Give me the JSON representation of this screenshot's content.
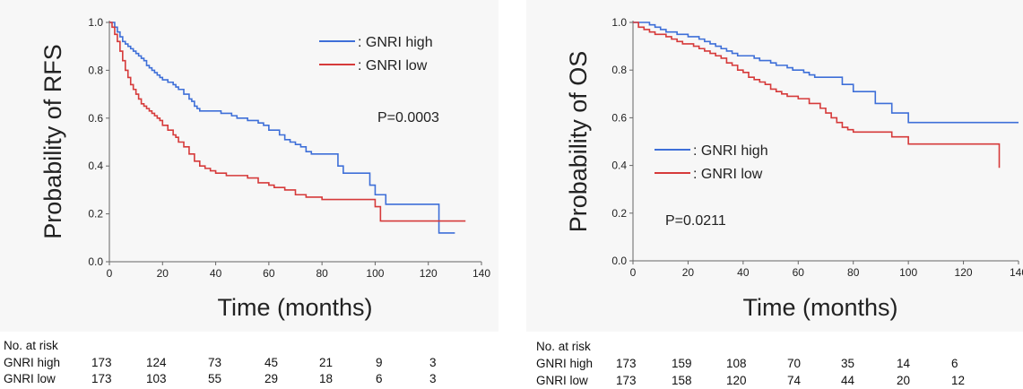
{
  "chart_data": [
    {
      "type": "line",
      "ylabel": "Probability of RFS",
      "xlabel": "Time (months)",
      "xlim": [
        0,
        140
      ],
      "ylim": [
        0,
        1.0
      ],
      "xticks": [
        "0",
        "20",
        "40",
        "60",
        "80",
        "100",
        "120",
        "140"
      ],
      "yticks": [
        "0.0",
        "0.2",
        "0.4",
        "0.6",
        "0.8",
        "1.0"
      ],
      "legend_position": "top-right",
      "annotation": "P=0.0003",
      "series": [
        {
          "name": ": GNRI high",
          "color": "#3e6fd8",
          "x": [
            0,
            2,
            3,
            4,
            5,
            6,
            7,
            8,
            9,
            10,
            11,
            12,
            13,
            14,
            15,
            16,
            17,
            18,
            19,
            20,
            22,
            24,
            25,
            26,
            28,
            30,
            31,
            32,
            33,
            34,
            36,
            40,
            42,
            44,
            46,
            48,
            50,
            52,
            54,
            56,
            58,
            60,
            62,
            64,
            66,
            68,
            70,
            72,
            74,
            76,
            78,
            80,
            82,
            84,
            86,
            87,
            88,
            90,
            92,
            94,
            96,
            98,
            100,
            102,
            104,
            122,
            124,
            130
          ],
          "y": [
            1.0,
            0.98,
            0.96,
            0.94,
            0.92,
            0.91,
            0.9,
            0.89,
            0.88,
            0.87,
            0.86,
            0.85,
            0.84,
            0.82,
            0.81,
            0.8,
            0.79,
            0.78,
            0.77,
            0.76,
            0.75,
            0.74,
            0.73,
            0.72,
            0.7,
            0.68,
            0.67,
            0.65,
            0.64,
            0.63,
            0.63,
            0.63,
            0.62,
            0.62,
            0.61,
            0.6,
            0.6,
            0.59,
            0.59,
            0.58,
            0.57,
            0.55,
            0.55,
            0.53,
            0.51,
            0.5,
            0.49,
            0.48,
            0.46,
            0.45,
            0.45,
            0.45,
            0.45,
            0.45,
            0.4,
            0.4,
            0.37,
            0.37,
            0.37,
            0.37,
            0.37,
            0.32,
            0.28,
            0.28,
            0.24,
            0.24,
            0.12,
            0.12
          ]
        },
        {
          "name": ": GNRI low",
          "color": "#d63a3a",
          "x": [
            0,
            1,
            2,
            3,
            4,
            5,
            6,
            7,
            8,
            9,
            10,
            11,
            12,
            13,
            14,
            15,
            16,
            17,
            18,
            19,
            20,
            22,
            24,
            25,
            26,
            28,
            30,
            32,
            34,
            36,
            38,
            40,
            44,
            48,
            52,
            56,
            60,
            62,
            64,
            66,
            70,
            74,
            80,
            86,
            94,
            100,
            102,
            134
          ],
          "y": [
            1.0,
            0.98,
            0.95,
            0.92,
            0.88,
            0.84,
            0.8,
            0.77,
            0.74,
            0.72,
            0.7,
            0.68,
            0.66,
            0.65,
            0.64,
            0.63,
            0.62,
            0.61,
            0.6,
            0.59,
            0.57,
            0.55,
            0.53,
            0.52,
            0.5,
            0.48,
            0.45,
            0.42,
            0.4,
            0.39,
            0.38,
            0.37,
            0.36,
            0.36,
            0.35,
            0.33,
            0.32,
            0.31,
            0.31,
            0.3,
            0.28,
            0.27,
            0.26,
            0.26,
            0.26,
            0.23,
            0.17,
            0.17
          ]
        }
      ]
    },
    {
      "type": "line",
      "ylabel": "Probability of OS",
      "xlabel": "Time (months)",
      "xlim": [
        0,
        140
      ],
      "ylim": [
        0,
        1.0
      ],
      "xticks": [
        "0",
        "20",
        "40",
        "60",
        "80",
        "100",
        "120",
        "140"
      ],
      "yticks": [
        "0.0",
        "0.2",
        "0.4",
        "0.6",
        "0.8",
        "1.0"
      ],
      "legend_position": "center-left",
      "annotation": "P=0.0211",
      "series": [
        {
          "name": ": GNRI high",
          "color": "#3e6fd8",
          "x": [
            0,
            4,
            6,
            8,
            10,
            12,
            14,
            16,
            18,
            20,
            24,
            26,
            28,
            30,
            32,
            34,
            36,
            38,
            40,
            44,
            46,
            48,
            50,
            52,
            54,
            56,
            58,
            60,
            62,
            64,
            66,
            70,
            74,
            76,
            80,
            82,
            86,
            88,
            92,
            94,
            96,
            100,
            140
          ],
          "y": [
            1.0,
            1.0,
            0.99,
            0.98,
            0.97,
            0.96,
            0.96,
            0.95,
            0.95,
            0.94,
            0.93,
            0.92,
            0.91,
            0.9,
            0.89,
            0.88,
            0.87,
            0.86,
            0.86,
            0.85,
            0.84,
            0.84,
            0.83,
            0.82,
            0.82,
            0.81,
            0.8,
            0.8,
            0.79,
            0.78,
            0.77,
            0.77,
            0.77,
            0.74,
            0.71,
            0.71,
            0.71,
            0.66,
            0.66,
            0.62,
            0.62,
            0.58,
            0.58
          ]
        },
        {
          "name": ": GNRI low",
          "color": "#d63a3a",
          "x": [
            0,
            2,
            4,
            6,
            8,
            10,
            12,
            14,
            16,
            18,
            20,
            22,
            24,
            26,
            28,
            30,
            32,
            34,
            36,
            38,
            40,
            42,
            44,
            46,
            48,
            50,
            52,
            54,
            56,
            60,
            64,
            68,
            70,
            72,
            74,
            76,
            78,
            80,
            84,
            92,
            94,
            100,
            132,
            133
          ],
          "y": [
            1.0,
            0.98,
            0.97,
            0.96,
            0.95,
            0.95,
            0.94,
            0.93,
            0.92,
            0.91,
            0.91,
            0.9,
            0.89,
            0.88,
            0.87,
            0.86,
            0.85,
            0.83,
            0.82,
            0.8,
            0.79,
            0.77,
            0.76,
            0.75,
            0.74,
            0.72,
            0.71,
            0.7,
            0.69,
            0.68,
            0.66,
            0.64,
            0.62,
            0.6,
            0.58,
            0.56,
            0.55,
            0.54,
            0.54,
            0.54,
            0.52,
            0.49,
            0.49,
            0.39
          ]
        }
      ]
    }
  ],
  "risk_tables": [
    {
      "title": "No. at risk",
      "rows": [
        {
          "label": "GNRI high",
          "values": [
            "173",
            "124",
            "73",
            "45",
            "21",
            "9",
            "3"
          ]
        },
        {
          "label": "GNRI low",
          "values": [
            "173",
            "103",
            "55",
            "29",
            "18",
            "6",
            "3"
          ]
        }
      ]
    },
    {
      "title": "No. at risk",
      "rows": [
        {
          "label": "GNRI high",
          "values": [
            "173",
            "159",
            "108",
            "70",
            "35",
            "14",
            "6"
          ]
        },
        {
          "label": "GNRI low",
          "values": [
            "173",
            "158",
            "120",
            "74",
            "44",
            "20",
            "12"
          ]
        }
      ]
    }
  ]
}
